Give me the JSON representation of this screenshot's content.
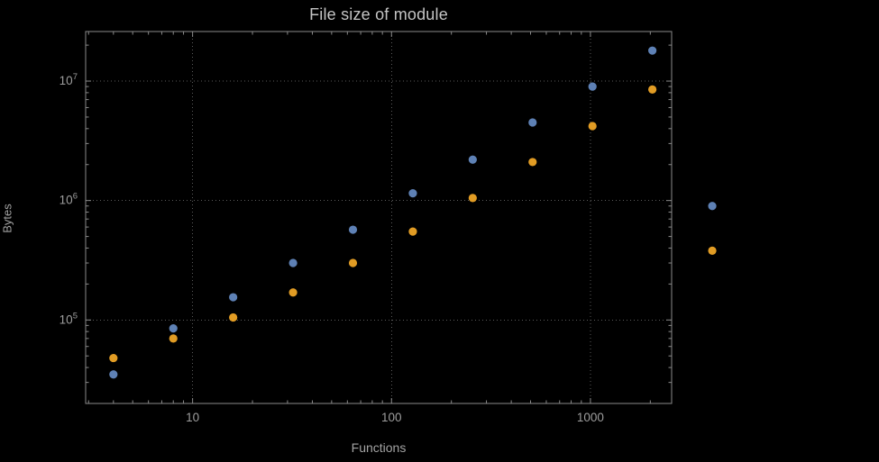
{
  "page": {
    "background_color": "#000000"
  },
  "chart_data": {
    "type": "scatter",
    "title": "File size of module",
    "xlabel": "Functions",
    "ylabel": "Bytes",
    "xscale": "log",
    "yscale": "log",
    "xlim": [
      2.9,
      2560
    ],
    "ylim": [
      20000,
      26000000
    ],
    "grid": true,
    "grid_style": "dotted",
    "legend": "none",
    "xticks": {
      "values": [
        10,
        100,
        1000
      ],
      "labels": [
        "10",
        "100",
        "1000"
      ]
    },
    "yticks": {
      "values": [
        100000,
        1000000,
        10000000
      ],
      "base": "10",
      "exponents": [
        "5",
        "6",
        "7"
      ]
    },
    "colors": {
      "frame": "#8a8a8a",
      "grid": "#5a5a5a",
      "tick_text": "#9e9e9e",
      "title_text": "#c4c4c4",
      "series_blue": "#5e81b5",
      "series_orange": "#e19c24"
    },
    "marker": {
      "shape": "circle",
      "radius": 4.6
    },
    "series": [
      {
        "name": "series-blue",
        "color": "#5e81b5",
        "x": [
          4,
          8,
          16,
          32,
          64,
          128,
          256,
          512,
          1024,
          2048,
          4096
        ],
        "y": [
          35000,
          85000,
          155000,
          300000,
          570000,
          1150000,
          2200000,
          4500000,
          9000000,
          18000000,
          900000
        ]
      },
      {
        "name": "series-orange",
        "color": "#e19c24",
        "x": [
          4,
          8,
          16,
          32,
          64,
          128,
          256,
          512,
          1024,
          2048,
          4096
        ],
        "y": [
          48000,
          70000,
          105000,
          170000,
          300000,
          550000,
          1050000,
          2100000,
          4200000,
          8500000,
          380000
        ]
      }
    ]
  }
}
